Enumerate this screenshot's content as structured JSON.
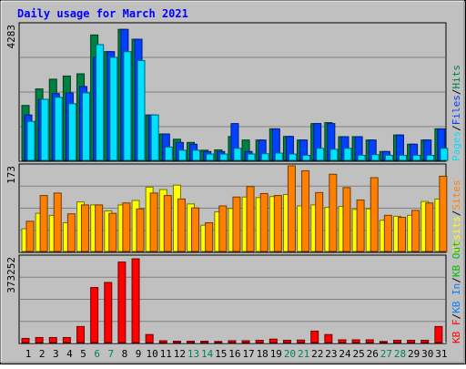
{
  "title": "Daily usage for March 2021",
  "colors": {
    "hits": "#008040",
    "files": "#0040ff",
    "pages": "#00e0ff",
    "visits": "#ffff00",
    "sites": "#ff8000",
    "kbin": "#0080ff",
    "kbout": "#00c000",
    "kbf": "#ff0000",
    "weekend": "#00805c",
    "title": "#0000ff"
  },
  "chart_data": [
    {
      "type": "bar",
      "name": "hits-files-pages",
      "scale_label": "4283",
      "ylim": [
        0,
        4283
      ],
      "legend": [
        {
          "text": "Pages",
          "color": "#00e0ff"
        },
        {
          "text": "/",
          "color": "#000000"
        },
        {
          "text": "Files",
          "color": "#0040ff"
        },
        {
          "text": "/",
          "color": "#000000"
        },
        {
          "text": "Hits",
          "color": "#008040"
        }
      ],
      "series": [
        {
          "name": "Hits",
          "values": [
            1732,
            2253,
            2560,
            2660,
            2730,
            3956,
            3430,
            4133,
            3822,
            1432,
            832,
            666,
            566,
            320,
            330,
            750,
            642,
            642,
            994,
            755,
            642,
            1161,
            1190,
            747,
            747,
            642,
            279,
            801,
            510,
            642,
            994
          ]
        },
        {
          "name": "Files",
          "values": [
            1432,
            1925,
            2109,
            2130,
            2330,
            3250,
            3430,
            4133,
            3822,
            1432,
            832,
            566,
            510,
            279,
            279,
            1161,
            279,
            642,
            994,
            755,
            642,
            1161,
            1161,
            747,
            747,
            642,
            279,
            801,
            510,
            642,
            994
          ]
        },
        {
          "name": "Pages",
          "values": [
            1230,
            1925,
            1989,
            1789,
            2130,
            3652,
            3250,
            3430,
            3150,
            1432,
            420,
            320,
            320,
            200,
            200,
            380,
            200,
            210,
            230,
            200,
            160,
            380,
            350,
            380,
            160,
            180,
            160,
            160,
            160,
            160,
            380
          ]
        }
      ]
    },
    {
      "type": "bar",
      "name": "visits-sites",
      "scale_label": "173",
      "ylim": [
        0,
        173
      ],
      "legend": [
        {
          "text": "Visits",
          "color": "#ffff00"
        },
        {
          "text": "/",
          "color": "#000000"
        },
        {
          "text": "Sites",
          "color": "#ff8000"
        }
      ],
      "series": [
        {
          "name": "Visits",
          "values": [
            46,
            77,
            73,
            58,
            100,
            94,
            82,
            94,
            103,
            130,
            125,
            134,
            96,
            53,
            80,
            87,
            110,
            109,
            111,
            115,
            92,
            94,
            89,
            91,
            85,
            86,
            63,
            71,
            73,
            101,
            106
          ]
        },
        {
          "name": "Sites",
          "values": [
            61,
            113,
            118,
            76,
            94,
            94,
            77,
            98,
            86,
            118,
            113,
            106,
            88,
            58,
            92,
            110,
            131,
            117,
            113,
            173,
            163,
            119,
            156,
            129,
            104,
            149,
            73,
            69,
            83,
            98,
            152
          ]
        }
      ]
    },
    {
      "type": "bar",
      "name": "kbytes",
      "scale_label": "373252",
      "ylim": [
        0,
        373252
      ],
      "legend": [
        {
          "text": "KB F",
          "color": "#ff0000"
        },
        {
          "text": "/",
          "color": "#000000"
        },
        {
          "text": "KB In",
          "color": "#0080ff"
        },
        {
          "text": "/",
          "color": "#000000"
        },
        {
          "text": "KB Out",
          "color": "#00c000"
        }
      ],
      "series": [
        {
          "name": "KB F",
          "values": [
            18000,
            22000,
            22000,
            22000,
            70000,
            240000,
            262000,
            351000,
            365000,
            35000,
            8000,
            6000,
            6000,
            6000,
            5000,
            8000,
            8000,
            10000,
            15000,
            10000,
            11000,
            50000,
            35000,
            12000,
            12000,
            12000,
            5000,
            10000,
            10000,
            10000,
            70000
          ]
        }
      ]
    }
  ],
  "x_axis": {
    "labels": [
      "1",
      "2",
      "3",
      "4",
      "5",
      "6",
      "7",
      "8",
      "9",
      "10",
      "11",
      "12",
      "13",
      "14",
      "15",
      "16",
      "17",
      "18",
      "19",
      "20",
      "21",
      "22",
      "23",
      "24",
      "25",
      "26",
      "27",
      "28",
      "29",
      "30",
      "31"
    ],
    "weekend_days": [
      "6",
      "7",
      "13",
      "14",
      "20",
      "21",
      "27",
      "28"
    ]
  }
}
